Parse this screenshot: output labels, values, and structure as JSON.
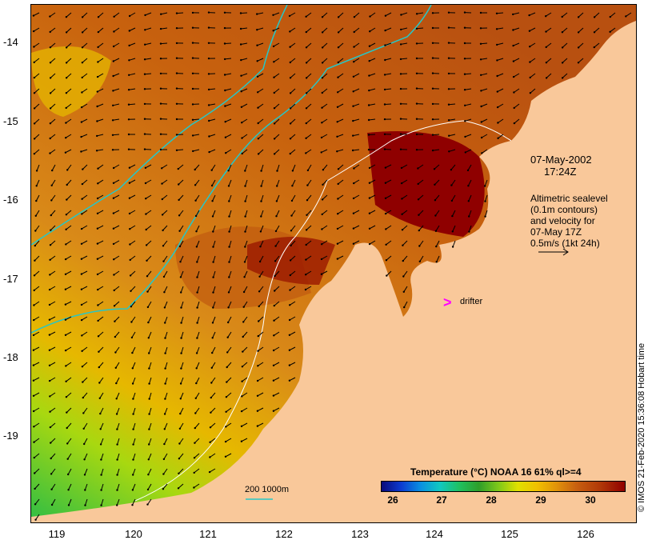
{
  "map": {
    "date_line1": "07-May-2002",
    "date_line2": "17:24Z",
    "info_lines": [
      "Altimetric sealevel",
      "(0.1m contours)",
      "and velocity for",
      "07-May 17Z",
      "0.5m/s (1kt 24h)"
    ],
    "drifter_label": "drifter",
    "drifter_icon": "magenta-chevron-icon",
    "scale_label": "200  1000m",
    "credit": "© IMOS 21-Feb-2020 15:36:08 Hobart time",
    "lat_labels": [
      "-14",
      "-15",
      "-16",
      "-17",
      "-18",
      "-19"
    ],
    "lon_labels": [
      "119",
      "120",
      "121",
      "122",
      "123",
      "124",
      "125",
      "126"
    ]
  },
  "legend": {
    "title": "Temperature (°C) NOAA 16 61% ql>=4",
    "ticks": [
      "26",
      "27",
      "28",
      "29",
      "30"
    ]
  },
  "colors": {
    "land": "#f9c89a",
    "sea_hot": "#8f0000",
    "sea_warm": "#c8620e",
    "sea_mid": "#d98a18",
    "sea_cool": "#e6b800",
    "sea_cold": "#2ebd45",
    "isobath": "#26c7c7",
    "contour": "#ffffff",
    "drifter": "#ff00ff"
  }
}
